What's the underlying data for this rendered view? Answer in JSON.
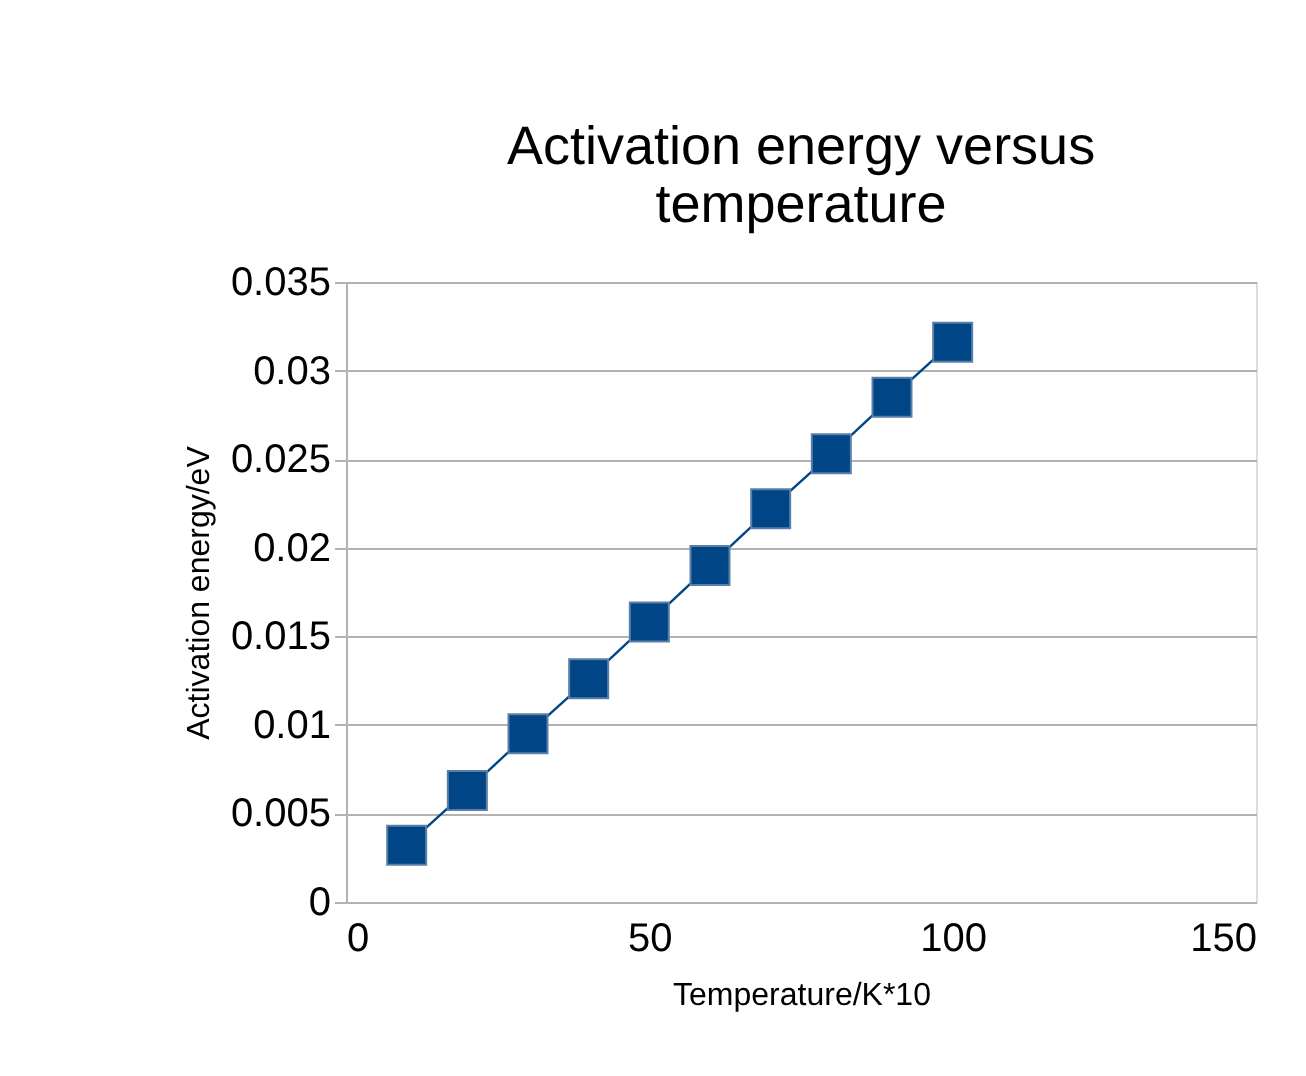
{
  "chart_data": {
    "type": "line",
    "title": "Activation energy versus temperature",
    "xlabel": "Temperature/K*10",
    "ylabel": "Activation energy/eV",
    "x": [
      10,
      20,
      30,
      40,
      50,
      60,
      70,
      80,
      90,
      100
    ],
    "series": [
      {
        "color": "#004586",
        "values": [
          0.0032,
          0.0063,
          0.0095,
          0.0126,
          0.0158,
          0.019,
          0.0222,
          0.0253,
          0.0285,
          0.0316
        ]
      }
    ],
    "xlim": [
      0,
      150
    ],
    "xticks": [
      0,
      50,
      100,
      150
    ],
    "ylim": [
      0,
      0.035
    ],
    "yticks": [
      0,
      0.005,
      0.01,
      0.015,
      0.02,
      0.025,
      0.03,
      0.035
    ],
    "grid": "y",
    "marker": "square",
    "line_style": "solid"
  }
}
